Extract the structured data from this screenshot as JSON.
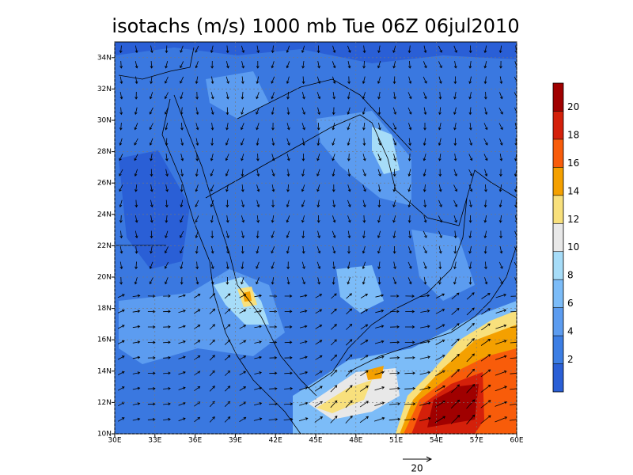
{
  "title": "isotachs (m/s) 1000 mb Tue 06Z 06jul2010",
  "map": {
    "xlim": [
      30,
      60
    ],
    "ylim": [
      10,
      35
    ],
    "xticks": [
      {
        "value": 30,
        "label": "30E"
      },
      {
        "value": 33,
        "label": "33E"
      },
      {
        "value": 36,
        "label": "36E"
      },
      {
        "value": 39,
        "label": "39E"
      },
      {
        "value": 42,
        "label": "42E"
      },
      {
        "value": 45,
        "label": "45E"
      },
      {
        "value": 48,
        "label": "48E"
      },
      {
        "value": 51,
        "label": "51E"
      },
      {
        "value": 54,
        "label": "54E"
      },
      {
        "value": 57,
        "label": "57E"
      },
      {
        "value": 60,
        "label": "60E"
      }
    ],
    "yticks": [
      {
        "value": 10,
        "label": "10N"
      },
      {
        "value": 12,
        "label": "12N"
      },
      {
        "value": 14,
        "label": "14N"
      },
      {
        "value": 16,
        "label": "16N"
      },
      {
        "value": 18,
        "label": "18N"
      },
      {
        "value": 20,
        "label": "20N"
      },
      {
        "value": 22,
        "label": "22N"
      },
      {
        "value": 24,
        "label": "24N"
      },
      {
        "value": 26,
        "label": "26N"
      },
      {
        "value": 28,
        "label": "28N"
      },
      {
        "value": 30,
        "label": "30N"
      },
      {
        "value": 32,
        "label": "32N"
      },
      {
        "value": 34,
        "label": "34N"
      }
    ]
  },
  "colorbar": {
    "levels": [
      2,
      4,
      6,
      8,
      10,
      12,
      14,
      16,
      18,
      20
    ],
    "colors": [
      "#2a5fd6",
      "#3c7ee4",
      "#5c9cf0",
      "#7cbcf8",
      "#a6dcf8",
      "#e8e8e8",
      "#f8e07c",
      "#f4a000",
      "#f85c0a",
      "#d4200a",
      "#a00000"
    ]
  },
  "reference_vector": 20
}
